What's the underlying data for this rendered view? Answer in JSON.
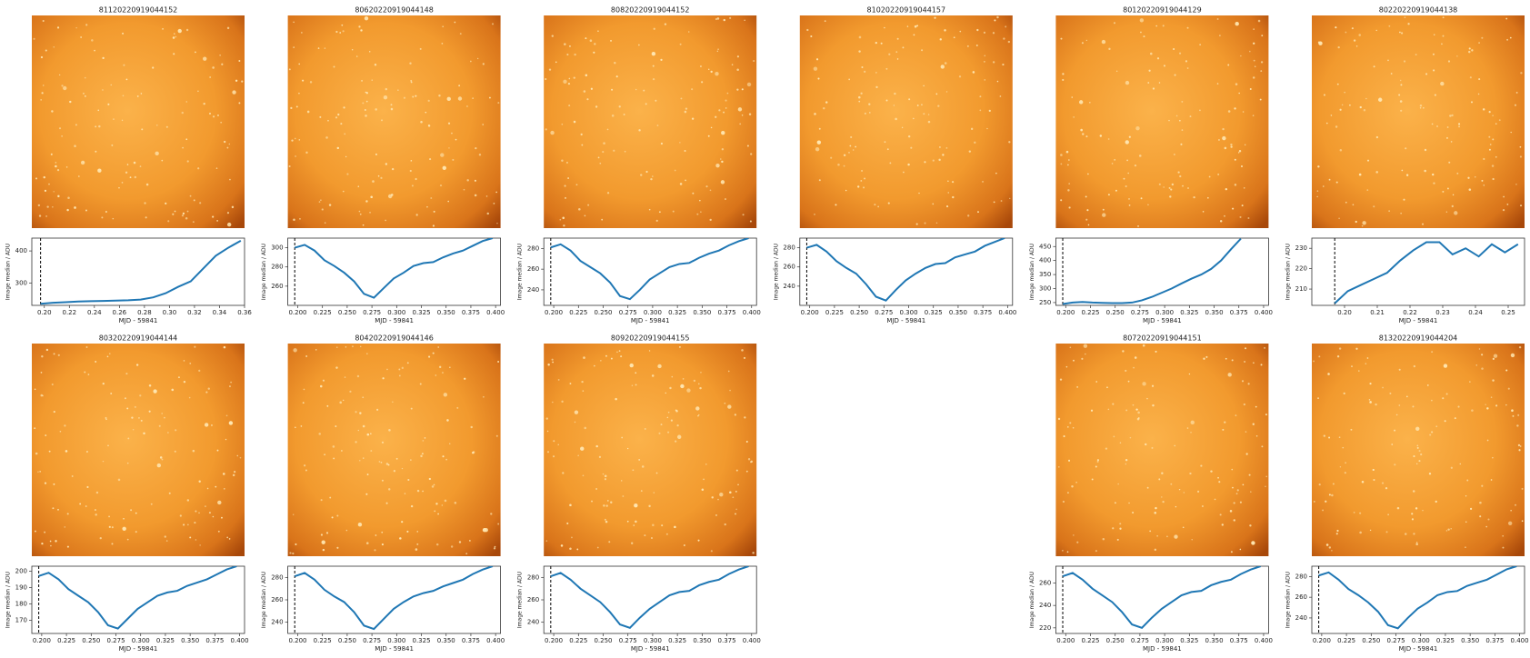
{
  "chart_data": [
    {
      "type": "line",
      "title": "81120220919044152",
      "xlabel": "MJD - 59841",
      "ylabel": "Image median / ADU",
      "color": "#1f77b4",
      "marker_x": 0.197,
      "x": [
        0.197,
        0.207,
        0.217,
        0.227,
        0.237,
        0.247,
        0.257,
        0.267,
        0.277,
        0.287,
        0.297,
        0.307,
        0.317,
        0.327,
        0.337,
        0.347,
        0.357
      ],
      "values": [
        235,
        238,
        240,
        242,
        243,
        244,
        245,
        246,
        248,
        255,
        268,
        288,
        305,
        345,
        385,
        410,
        432
      ],
      "xlim": [
        0.19,
        0.36
      ],
      "ylim": [
        230,
        440
      ],
      "xticks": [
        {
          "value": 0.2,
          "label": "0.20"
        },
        {
          "value": 0.22,
          "label": "0.22"
        },
        {
          "value": 0.24,
          "label": "0.24"
        },
        {
          "value": 0.26,
          "label": "0.26"
        },
        {
          "value": 0.28,
          "label": "0.28"
        },
        {
          "value": 0.3,
          "label": "0.30"
        },
        {
          "value": 0.32,
          "label": "0.32"
        },
        {
          "value": 0.34,
          "label": "0.34"
        },
        {
          "value": 0.36,
          "label": "0.36"
        }
      ],
      "yticks": [
        300,
        400
      ]
    },
    {
      "type": "line",
      "title": "80620220919044148",
      "xlabel": "MJD - 59841",
      "ylabel": "Image median / ADU",
      "color": "#1f77b4",
      "marker_x": 0.197,
      "x": [
        0.197,
        0.207,
        0.217,
        0.227,
        0.237,
        0.247,
        0.257,
        0.267,
        0.277,
        0.287,
        0.297,
        0.307,
        0.317,
        0.327,
        0.337,
        0.347,
        0.357,
        0.367,
        0.377,
        0.387,
        0.397
      ],
      "values": [
        300,
        303,
        297,
        287,
        281,
        274,
        265,
        252,
        248,
        258,
        268,
        274,
        281,
        284,
        285,
        290,
        294,
        297,
        302,
        307,
        310
      ],
      "xlim": [
        0.19,
        0.405
      ],
      "ylim": [
        240,
        310
      ],
      "xticks": [
        {
          "value": 0.2,
          "label": "0.200"
        },
        {
          "value": 0.225,
          "label": "0.225"
        },
        {
          "value": 0.25,
          "label": "0.250"
        },
        {
          "value": 0.275,
          "label": "0.275"
        },
        {
          "value": 0.3,
          "label": "0.300"
        },
        {
          "value": 0.325,
          "label": "0.325"
        },
        {
          "value": 0.35,
          "label": "0.350"
        },
        {
          "value": 0.375,
          "label": "0.375"
        },
        {
          "value": 0.4,
          "label": "0.400"
        }
      ],
      "yticks": [
        260,
        280,
        300
      ]
    },
    {
      "type": "line",
      "title": "80820220919044152",
      "xlabel": "MJD - 59841",
      "ylabel": "Image median / ADU",
      "color": "#1f77b4",
      "marker_x": 0.197,
      "x": [
        0.197,
        0.207,
        0.217,
        0.227,
        0.237,
        0.247,
        0.257,
        0.267,
        0.277,
        0.287,
        0.297,
        0.307,
        0.317,
        0.327,
        0.337,
        0.347,
        0.357,
        0.367,
        0.377,
        0.387,
        0.397
      ],
      "values": [
        281,
        284,
        278,
        268,
        262,
        256,
        247,
        234,
        231,
        240,
        250,
        256,
        262,
        265,
        266,
        271,
        275,
        278,
        283,
        287,
        290
      ],
      "xlim": [
        0.19,
        0.405
      ],
      "ylim": [
        225,
        290
      ],
      "xticks": [
        {
          "value": 0.2,
          "label": "0.200"
        },
        {
          "value": 0.225,
          "label": "0.225"
        },
        {
          "value": 0.25,
          "label": "0.250"
        },
        {
          "value": 0.275,
          "label": "0.275"
        },
        {
          "value": 0.3,
          "label": "0.300"
        },
        {
          "value": 0.325,
          "label": "0.325"
        },
        {
          "value": 0.35,
          "label": "0.350"
        },
        {
          "value": 0.375,
          "label": "0.375"
        },
        {
          "value": 0.4,
          "label": "0.400"
        }
      ],
      "yticks": [
        240,
        260,
        280
      ]
    },
    {
      "type": "line",
      "title": "81020220919044157",
      "xlabel": "MJD - 59841",
      "ylabel": "Image median / ADU",
      "color": "#1f77b4",
      "marker_x": 0.197,
      "x": [
        0.197,
        0.207,
        0.217,
        0.227,
        0.237,
        0.247,
        0.257,
        0.267,
        0.277,
        0.287,
        0.297,
        0.307,
        0.317,
        0.327,
        0.337,
        0.347,
        0.357,
        0.367,
        0.377,
        0.387,
        0.397
      ],
      "values": [
        280,
        283,
        276,
        266,
        259,
        253,
        242,
        229,
        225,
        236,
        246,
        253,
        259,
        263,
        264,
        270,
        273,
        276,
        282,
        286,
        290
      ],
      "xlim": [
        0.19,
        0.405
      ],
      "ylim": [
        220,
        290
      ],
      "xticks": [
        {
          "value": 0.2,
          "label": "0.200"
        },
        {
          "value": 0.225,
          "label": "0.225"
        },
        {
          "value": 0.25,
          "label": "0.250"
        },
        {
          "value": 0.275,
          "label": "0.275"
        },
        {
          "value": 0.3,
          "label": "0.300"
        },
        {
          "value": 0.325,
          "label": "0.325"
        },
        {
          "value": 0.35,
          "label": "0.350"
        },
        {
          "value": 0.375,
          "label": "0.375"
        },
        {
          "value": 0.4,
          "label": "0.400"
        }
      ],
      "yticks": [
        240,
        260,
        280
      ]
    },
    {
      "type": "line",
      "title": "80120220919044129",
      "xlabel": "MJD - 59841",
      "ylabel": "Image median / ADU",
      "color": "#1f77b4",
      "marker_x": 0.197,
      "x": [
        0.197,
        0.207,
        0.217,
        0.227,
        0.237,
        0.247,
        0.257,
        0.267,
        0.277,
        0.287,
        0.297,
        0.307,
        0.317,
        0.327,
        0.337,
        0.347,
        0.357,
        0.367,
        0.377
      ],
      "values": [
        245,
        250,
        252,
        250,
        249,
        248,
        248,
        250,
        258,
        270,
        285,
        300,
        318,
        335,
        350,
        370,
        400,
        440,
        478
      ],
      "xlim": [
        0.19,
        0.405
      ],
      "ylim": [
        240,
        480
      ],
      "xticks": [
        {
          "value": 0.2,
          "label": "0.200"
        },
        {
          "value": 0.225,
          "label": "0.225"
        },
        {
          "value": 0.25,
          "label": "0.250"
        },
        {
          "value": 0.275,
          "label": "0.275"
        },
        {
          "value": 0.3,
          "label": "0.300"
        },
        {
          "value": 0.325,
          "label": "0.325"
        },
        {
          "value": 0.35,
          "label": "0.350"
        },
        {
          "value": 0.375,
          "label": "0.375"
        },
        {
          "value": 0.4,
          "label": "0.400"
        }
      ],
      "yticks": [
        250,
        300,
        350,
        400,
        450
      ]
    },
    {
      "type": "line",
      "title": "80220220919044138",
      "xlabel": "MJD - 59841",
      "ylabel": "Image median / ADU",
      "color": "#1f77b4",
      "marker_x": 0.197,
      "x": [
        0.197,
        0.201,
        0.205,
        0.209,
        0.213,
        0.217,
        0.221,
        0.225,
        0.229,
        0.233,
        0.237,
        0.241,
        0.245,
        0.249,
        0.253
      ],
      "values": [
        203,
        209,
        212,
        215,
        218,
        224,
        229,
        233,
        233,
        227,
        230,
        226,
        232,
        228,
        232
      ],
      "xlim": [
        0.19,
        0.255
      ],
      "ylim": [
        202,
        235
      ],
      "xticks": [
        {
          "value": 0.2,
          "label": "0.20"
        },
        {
          "value": 0.21,
          "label": "0.21"
        },
        {
          "value": 0.22,
          "label": "0.22"
        },
        {
          "value": 0.23,
          "label": "0.23"
        },
        {
          "value": 0.24,
          "label": "0.24"
        },
        {
          "value": 0.25,
          "label": "0.25"
        }
      ],
      "yticks": [
        210,
        220,
        230
      ]
    },
    {
      "type": "line",
      "title": "80320220919044144",
      "xlabel": "MJD - 59841",
      "ylabel": "Image median / ADU",
      "color": "#1f77b4",
      "marker_x": 0.197,
      "x": [
        0.197,
        0.207,
        0.217,
        0.227,
        0.237,
        0.247,
        0.257,
        0.267,
        0.277,
        0.287,
        0.297,
        0.307,
        0.317,
        0.327,
        0.337,
        0.347,
        0.357,
        0.367,
        0.377,
        0.387,
        0.397
      ],
      "values": [
        197,
        199,
        195,
        189,
        185,
        181,
        175,
        167,
        165,
        171,
        177,
        181,
        185,
        187,
        188,
        191,
        193,
        195,
        198,
        201,
        203
      ],
      "xlim": [
        0.19,
        0.405
      ],
      "ylim": [
        162,
        203
      ],
      "xticks": [
        {
          "value": 0.2,
          "label": "0.200"
        },
        {
          "value": 0.225,
          "label": "0.225"
        },
        {
          "value": 0.25,
          "label": "0.250"
        },
        {
          "value": 0.275,
          "label": "0.275"
        },
        {
          "value": 0.3,
          "label": "0.300"
        },
        {
          "value": 0.325,
          "label": "0.325"
        },
        {
          "value": 0.35,
          "label": "0.350"
        },
        {
          "value": 0.375,
          "label": "0.375"
        },
        {
          "value": 0.4,
          "label": "0.400"
        }
      ],
      "yticks": [
        170,
        180,
        190,
        200
      ]
    },
    {
      "type": "line",
      "title": "80420220919044146",
      "xlabel": "MJD - 59841",
      "ylabel": "Image median / ADU",
      "color": "#1f77b4",
      "marker_x": 0.197,
      "x": [
        0.197,
        0.207,
        0.217,
        0.227,
        0.237,
        0.247,
        0.257,
        0.267,
        0.277,
        0.287,
        0.297,
        0.307,
        0.317,
        0.327,
        0.337,
        0.347,
        0.357,
        0.367,
        0.377,
        0.387,
        0.397
      ],
      "values": [
        281,
        284,
        278,
        269,
        263,
        258,
        249,
        237,
        234,
        243,
        252,
        258,
        263,
        266,
        268,
        272,
        275,
        278,
        283,
        287,
        290
      ],
      "xlim": [
        0.19,
        0.405
      ],
      "ylim": [
        230,
        290
      ],
      "xticks": [
        {
          "value": 0.2,
          "label": "0.200"
        },
        {
          "value": 0.225,
          "label": "0.225"
        },
        {
          "value": 0.25,
          "label": "0.250"
        },
        {
          "value": 0.275,
          "label": "0.275"
        },
        {
          "value": 0.3,
          "label": "0.300"
        },
        {
          "value": 0.325,
          "label": "0.325"
        },
        {
          "value": 0.35,
          "label": "0.350"
        },
        {
          "value": 0.375,
          "label": "0.375"
        },
        {
          "value": 0.4,
          "label": "0.400"
        }
      ],
      "yticks": [
        240,
        260,
        280
      ]
    },
    {
      "type": "line",
      "title": "80920220919044155",
      "xlabel": "MJD - 59841",
      "ylabel": "Image median / ADU",
      "color": "#1f77b4",
      "marker_x": 0.197,
      "x": [
        0.197,
        0.207,
        0.217,
        0.227,
        0.237,
        0.247,
        0.257,
        0.267,
        0.277,
        0.287,
        0.297,
        0.307,
        0.317,
        0.327,
        0.337,
        0.347,
        0.357,
        0.367,
        0.377,
        0.387,
        0.397
      ],
      "values": [
        281,
        284,
        278,
        270,
        264,
        258,
        249,
        238,
        235,
        244,
        252,
        258,
        264,
        267,
        268,
        273,
        276,
        278,
        283,
        287,
        290
      ],
      "xlim": [
        0.19,
        0.405
      ],
      "ylim": [
        230,
        290
      ],
      "xticks": [
        {
          "value": 0.2,
          "label": "0.200"
        },
        {
          "value": 0.225,
          "label": "0.225"
        },
        {
          "value": 0.25,
          "label": "0.250"
        },
        {
          "value": 0.275,
          "label": "0.275"
        },
        {
          "value": 0.3,
          "label": "0.300"
        },
        {
          "value": 0.325,
          "label": "0.325"
        },
        {
          "value": 0.35,
          "label": "0.350"
        },
        {
          "value": 0.375,
          "label": "0.375"
        },
        {
          "value": 0.4,
          "label": "0.400"
        }
      ],
      "yticks": [
        240,
        260,
        280
      ]
    },
    {
      "type": "line",
      "title": "80720220919044151",
      "xlabel": "MJD - 59841",
      "ylabel": "Image median / ADU",
      "color": "#1f77b4",
      "marker_x": 0.197,
      "x": [
        0.197,
        0.207,
        0.217,
        0.227,
        0.237,
        0.247,
        0.257,
        0.267,
        0.277,
        0.287,
        0.297,
        0.307,
        0.317,
        0.327,
        0.337,
        0.347,
        0.357,
        0.367,
        0.377,
        0.387,
        0.397
      ],
      "values": [
        266,
        269,
        263,
        255,
        249,
        243,
        234,
        223,
        220,
        229,
        237,
        243,
        249,
        252,
        253,
        258,
        261,
        263,
        268,
        272,
        275
      ],
      "xlim": [
        0.19,
        0.405
      ],
      "ylim": [
        215,
        275
      ],
      "xticks": [
        {
          "value": 0.2,
          "label": "0.200"
        },
        {
          "value": 0.225,
          "label": "0.225"
        },
        {
          "value": 0.25,
          "label": "0.250"
        },
        {
          "value": 0.275,
          "label": "0.275"
        },
        {
          "value": 0.3,
          "label": "0.300"
        },
        {
          "value": 0.325,
          "label": "0.325"
        },
        {
          "value": 0.35,
          "label": "0.350"
        },
        {
          "value": 0.375,
          "label": "0.375"
        },
        {
          "value": 0.4,
          "label": "0.400"
        }
      ],
      "yticks": [
        220,
        240,
        260
      ]
    },
    {
      "type": "line",
      "title": "81320220919044204",
      "xlabel": "MJD - 59841",
      "ylabel": "Image median / ADU",
      "color": "#1f77b4",
      "marker_x": 0.197,
      "x": [
        0.197,
        0.207,
        0.217,
        0.227,
        0.237,
        0.247,
        0.257,
        0.267,
        0.277,
        0.287,
        0.297,
        0.307,
        0.317,
        0.327,
        0.337,
        0.347,
        0.357,
        0.367,
        0.377,
        0.387,
        0.397
      ],
      "values": [
        281,
        284,
        277,
        268,
        262,
        255,
        246,
        233,
        230,
        240,
        249,
        255,
        262,
        265,
        266,
        271,
        274,
        277,
        282,
        287,
        290
      ],
      "xlim": [
        0.19,
        0.405
      ],
      "ylim": [
        225,
        290
      ],
      "xticks": [
        {
          "value": 0.2,
          "label": "0.200"
        },
        {
          "value": 0.225,
          "label": "0.225"
        },
        {
          "value": 0.25,
          "label": "0.250"
        },
        {
          "value": 0.275,
          "label": "0.275"
        },
        {
          "value": 0.3,
          "label": "0.300"
        },
        {
          "value": 0.325,
          "label": "0.325"
        },
        {
          "value": 0.35,
          "label": "0.350"
        },
        {
          "value": 0.375,
          "label": "0.375"
        },
        {
          "value": 0.4,
          "label": "0.400"
        }
      ],
      "yticks": [
        240,
        260,
        280
      ]
    }
  ]
}
